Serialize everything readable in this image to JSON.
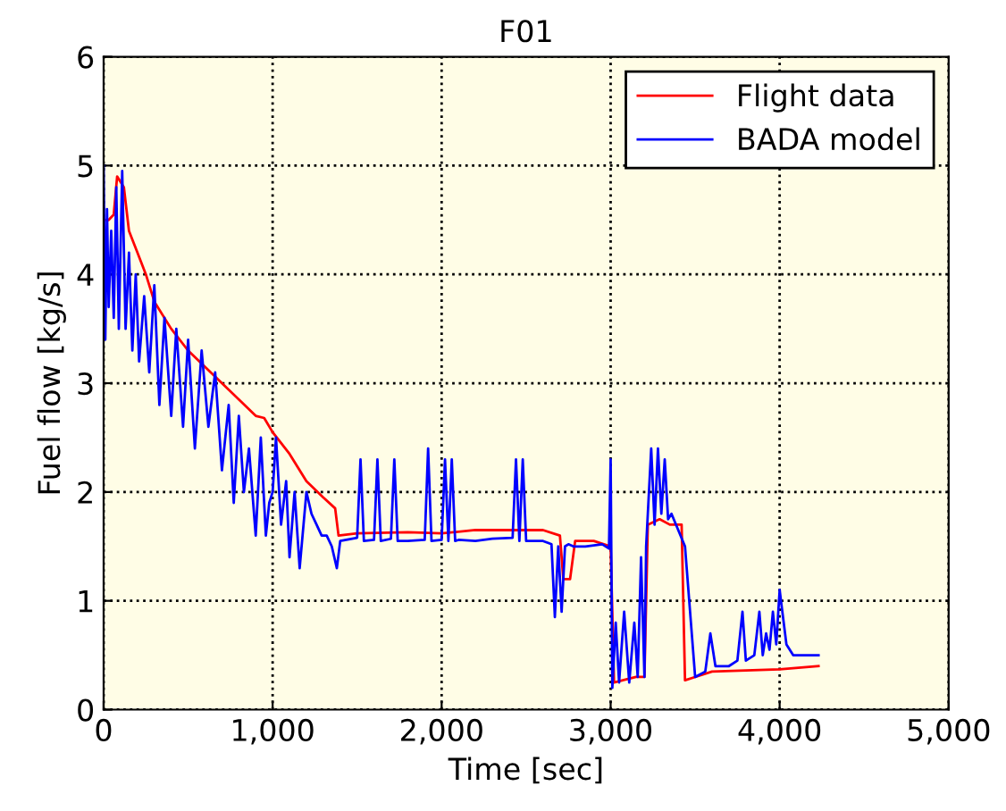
{
  "chart_data": {
    "type": "line",
    "title": "F01",
    "xlabel": "Time [sec]",
    "ylabel": "Fuel flow [kg/s]",
    "xlim": [
      0,
      5000
    ],
    "ylim": [
      0,
      6
    ],
    "xticks": [
      0,
      {
        "value": 1000,
        "label": "1,000"
      },
      {
        "value": 2000,
        "label": "2,000"
      },
      {
        "value": 3000,
        "label": "3,000"
      },
      {
        "value": 4000,
        "label": "4,000"
      },
      {
        "value": 5000,
        "label": "5,000"
      }
    ],
    "yticks": [
      0,
      1,
      2,
      3,
      4,
      5,
      6
    ],
    "grid": true,
    "legend": "top right",
    "line_style": "solid",
    "marker": "none",
    "series": [
      {
        "name": "Flight data",
        "color": "#ff0000",
        "x": [
          0,
          30,
          60,
          80,
          120,
          150,
          200,
          250,
          300,
          400,
          500,
          600,
          700,
          800,
          900,
          950,
          1000,
          1100,
          1200,
          1300,
          1370,
          1390,
          1500,
          1800,
          2000,
          2200,
          2400,
          2600,
          2700,
          2720,
          2760,
          2790,
          2900,
          3000,
          3020,
          3150,
          3200,
          3220,
          3290,
          3350,
          3420,
          3440,
          3500,
          3600,
          4000,
          4230
        ],
        "values": [
          4.5,
          4.5,
          4.55,
          4.9,
          4.8,
          4.4,
          4.2,
          4.0,
          3.75,
          3.5,
          3.3,
          3.15,
          3.0,
          2.85,
          2.7,
          2.68,
          2.55,
          2.35,
          2.1,
          1.95,
          1.85,
          1.6,
          1.62,
          1.63,
          1.62,
          1.65,
          1.65,
          1.65,
          1.6,
          1.2,
          1.2,
          1.55,
          1.55,
          1.5,
          0.25,
          0.3,
          0.3,
          1.7,
          1.75,
          1.7,
          1.7,
          0.27,
          0.3,
          0.35,
          0.37,
          0.4
        ]
      },
      {
        "name": "BADA model",
        "color": "#0000ff",
        "x": [
          0,
          10,
          20,
          30,
          45,
          60,
          75,
          90,
          110,
          130,
          150,
          170,
          190,
          210,
          240,
          270,
          300,
          330,
          360,
          400,
          430,
          470,
          500,
          540,
          580,
          620,
          660,
          700,
          740,
          770,
          800,
          830,
          860,
          900,
          930,
          960,
          980,
          1000,
          1020,
          1050,
          1080,
          1100,
          1130,
          1160,
          1200,
          1230,
          1260,
          1290,
          1320,
          1350,
          1380,
          1400,
          1500,
          1520,
          1540,
          1600,
          1620,
          1640,
          1700,
          1720,
          1740,
          1800,
          1900,
          1920,
          1940,
          2000,
          2020,
          2040,
          2060,
          2080,
          2100,
          2200,
          2300,
          2420,
          2440,
          2460,
          2480,
          2500,
          2520,
          2600,
          2650,
          2670,
          2690,
          2710,
          2730,
          2750,
          2780,
          2850,
          2950,
          2990,
          3000,
          3010,
          3030,
          3050,
          3080,
          3110,
          3140,
          3160,
          3180,
          3200,
          3210,
          3220,
          3240,
          3260,
          3280,
          3300,
          3320,
          3340,
          3360,
          3440,
          3500,
          3560,
          3590,
          3620,
          3700,
          3750,
          3780,
          3800,
          3850,
          3880,
          3900,
          3920,
          3940,
          3960,
          3980,
          4000,
          4040,
          4080,
          4230
        ],
        "values": [
          5.0,
          3.4,
          4.6,
          3.7,
          4.4,
          3.6,
          4.8,
          3.5,
          4.95,
          3.5,
          4.2,
          3.3,
          4.0,
          3.2,
          3.8,
          3.1,
          3.9,
          2.8,
          3.6,
          2.7,
          3.5,
          2.6,
          3.4,
          2.4,
          3.3,
          2.6,
          3.1,
          2.2,
          2.8,
          1.9,
          2.7,
          2.0,
          2.4,
          1.6,
          2.5,
          1.6,
          1.9,
          2.0,
          2.5,
          1.7,
          2.1,
          1.4,
          2.0,
          1.3,
          2.0,
          1.8,
          1.7,
          1.6,
          1.6,
          1.5,
          1.3,
          1.55,
          1.58,
          2.3,
          1.55,
          1.56,
          2.3,
          1.55,
          1.57,
          2.3,
          1.55,
          1.55,
          1.56,
          2.4,
          1.55,
          1.56,
          2.3,
          1.55,
          2.3,
          1.55,
          1.56,
          1.55,
          1.57,
          1.58,
          2.3,
          1.55,
          2.3,
          1.55,
          1.55,
          1.55,
          1.52,
          0.85,
          1.5,
          0.9,
          1.5,
          1.52,
          1.5,
          1.5,
          1.52,
          1.48,
          2.3,
          0.2,
          0.8,
          0.25,
          0.9,
          0.25,
          0.8,
          0.3,
          1.4,
          0.3,
          1.5,
          1.8,
          2.4,
          1.7,
          2.4,
          1.8,
          2.3,
          1.75,
          1.8,
          1.5,
          0.3,
          0.35,
          0.7,
          0.4,
          0.4,
          0.45,
          0.9,
          0.45,
          0.5,
          0.9,
          0.5,
          0.7,
          0.55,
          0.9,
          0.6,
          1.1,
          0.6,
          0.5,
          0.5
        ]
      }
    ]
  }
}
